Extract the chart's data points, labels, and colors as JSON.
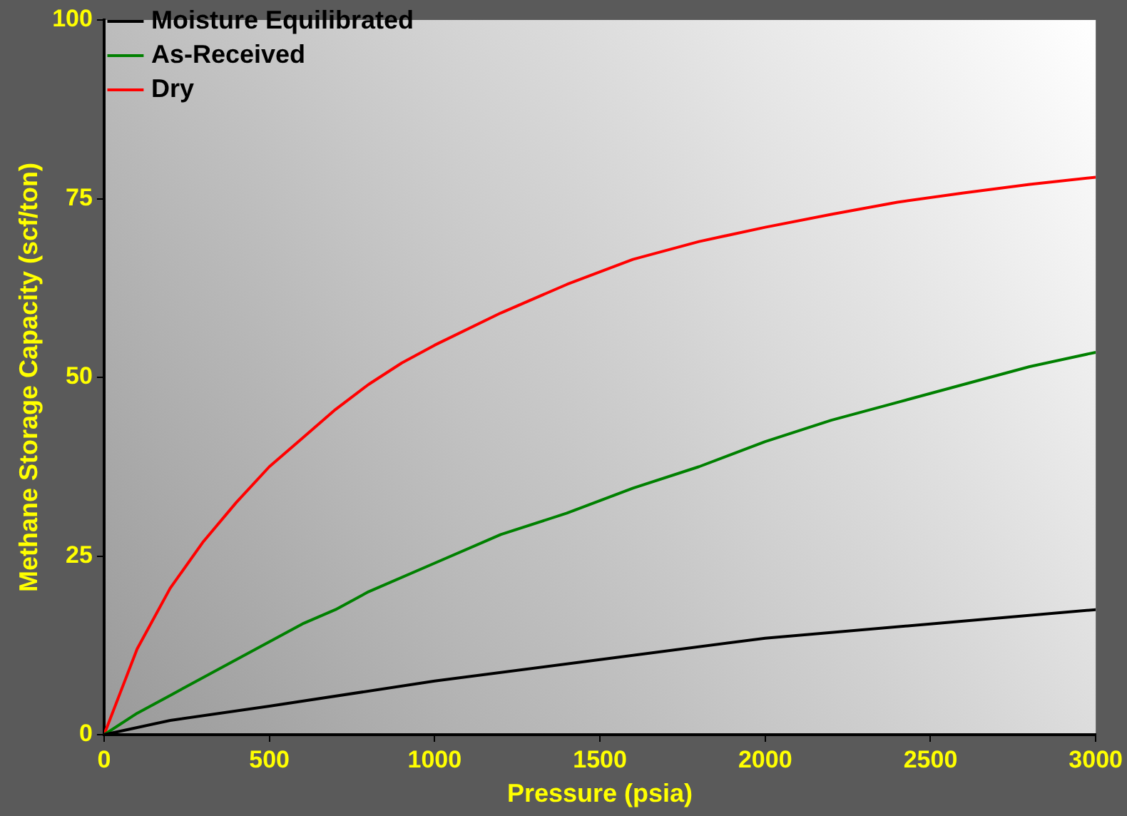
{
  "chart_data": {
    "type": "line",
    "xlabel": "Pressure (psia)",
    "ylabel": "Methane Storage Capacity (scf/ton)",
    "xlim": [
      0,
      3000
    ],
    "xticks": [
      0,
      500,
      1000,
      1500,
      2000,
      2500,
      3000
    ],
    "ylim": [
      0,
      100
    ],
    "yticks": [
      0,
      25,
      50,
      75,
      100
    ],
    "grid": false,
    "legend": "top left",
    "marker": "none",
    "line_style": "solid",
    "series": [
      {
        "name": "Moisture Equilibrated",
        "color": "#000000",
        "x": [
          0,
          100,
          200,
          500,
          1000,
          1500,
          2000,
          2500,
          3000
        ],
        "values": [
          0,
          1,
          2,
          4,
          7.5,
          10.5,
          13.5,
          15.5,
          17.5
        ]
      },
      {
        "name": "As-Received",
        "color": "#008000",
        "x": [
          0,
          100,
          200,
          400,
          500,
          600,
          700,
          800,
          1000,
          1200,
          1400,
          1600,
          1800,
          2000,
          2200,
          2400,
          2600,
          2800,
          3000
        ],
        "values": [
          0,
          3,
          5.5,
          10.5,
          13,
          15.5,
          17.5,
          20,
          24,
          28,
          31,
          34.5,
          37.5,
          41,
          44,
          46.5,
          49,
          51.5,
          53.5
        ]
      },
      {
        "name": "Dry",
        "color": "#ff0000",
        "x": [
          0,
          50,
          100,
          200,
          300,
          400,
          500,
          600,
          700,
          800,
          900,
          1000,
          1200,
          1400,
          1600,
          1800,
          2000,
          2200,
          2400,
          2600,
          2800,
          3000
        ],
        "values": [
          0,
          6,
          12,
          20.5,
          27,
          32.5,
          37.5,
          41.5,
          45.5,
          49,
          52,
          54.5,
          59,
          63,
          66.5,
          69,
          71,
          72.8,
          74.5,
          75.8,
          77,
          78
        ]
      }
    ]
  }
}
